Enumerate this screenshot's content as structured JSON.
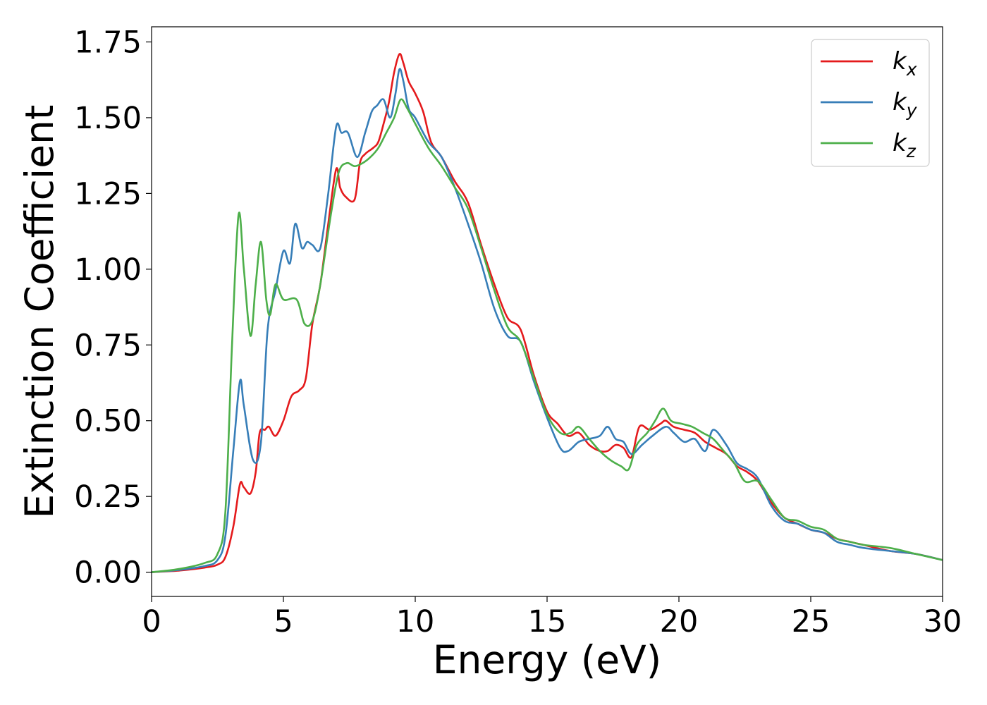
{
  "chart_data": {
    "type": "line",
    "title": "",
    "xlabel": "Energy (eV)",
    "ylabel": "Extinction Coefficient",
    "xlim": [
      0,
      30
    ],
    "ylim": [
      -0.08,
      1.8
    ],
    "xticks": [
      0,
      5,
      10,
      15,
      20,
      25,
      30
    ],
    "xtick_labels": [
      "0",
      "5",
      "10",
      "15",
      "20",
      "25",
      "30"
    ],
    "yticks": [
      0.0,
      0.25,
      0.5,
      0.75,
      1.0,
      1.25,
      1.5,
      1.75
    ],
    "ytick_labels": [
      "0.00",
      "0.25",
      "0.50",
      "0.75",
      "1.00",
      "1.25",
      "1.50",
      "1.75"
    ],
    "grid": false,
    "legend_position": "top-right",
    "series": [
      {
        "name": "k",
        "subscript": "x",
        "color": "#e41a1c",
        "x": [
          0,
          1,
          2,
          2.5,
          2.8,
          3.1,
          3.35,
          3.5,
          3.75,
          3.95,
          4.1,
          4.3,
          4.45,
          4.7,
          5.0,
          5.3,
          5.6,
          5.85,
          6.1,
          6.4,
          6.7,
          7.0,
          7.15,
          7.35,
          7.7,
          7.9,
          8.1,
          8.4,
          8.6,
          8.8,
          9.0,
          9.2,
          9.4,
          9.55,
          9.75,
          10.0,
          10.3,
          10.6,
          11.0,
          11.5,
          12.0,
          12.5,
          13.0,
          13.5,
          14.0,
          14.5,
          15.0,
          15.4,
          15.8,
          16.2,
          16.6,
          17.0,
          17.3,
          17.6,
          17.9,
          18.2,
          18.5,
          18.9,
          19.3,
          19.5,
          19.8,
          20.2,
          20.6,
          21.0,
          21.4,
          21.8,
          22.2,
          22.6,
          23.0,
          23.5,
          24.0,
          24.5,
          25.0,
          25.5,
          26.0,
          26.5,
          27.0,
          28.0,
          29.0,
          30.0
        ],
        "y": [
          0.0,
          0.005,
          0.015,
          0.025,
          0.05,
          0.15,
          0.29,
          0.28,
          0.26,
          0.33,
          0.46,
          0.47,
          0.48,
          0.45,
          0.5,
          0.58,
          0.6,
          0.64,
          0.82,
          0.95,
          1.15,
          1.33,
          1.27,
          1.24,
          1.23,
          1.35,
          1.38,
          1.4,
          1.42,
          1.48,
          1.55,
          1.65,
          1.71,
          1.68,
          1.62,
          1.58,
          1.52,
          1.42,
          1.37,
          1.29,
          1.22,
          1.08,
          0.95,
          0.84,
          0.8,
          0.65,
          0.53,
          0.49,
          0.45,
          0.46,
          0.42,
          0.4,
          0.4,
          0.42,
          0.41,
          0.38,
          0.48,
          0.47,
          0.49,
          0.5,
          0.48,
          0.47,
          0.46,
          0.43,
          0.41,
          0.39,
          0.35,
          0.33,
          0.3,
          0.23,
          0.18,
          0.16,
          0.14,
          0.13,
          0.11,
          0.1,
          0.09,
          0.07,
          0.06,
          0.04
        ]
      },
      {
        "name": "k",
        "subscript": "y",
        "color": "#377eb8",
        "x": [
          0,
          1,
          2,
          2.5,
          2.8,
          3.1,
          3.35,
          3.5,
          3.85,
          4.15,
          4.4,
          4.7,
          5.0,
          5.25,
          5.45,
          5.7,
          5.9,
          6.1,
          6.4,
          6.7,
          7.0,
          7.2,
          7.45,
          7.8,
          8.1,
          8.35,
          8.55,
          8.8,
          9.05,
          9.25,
          9.4,
          9.55,
          9.75,
          10.0,
          10.5,
          11.0,
          11.5,
          12.0,
          12.5,
          13.0,
          13.5,
          14.0,
          14.5,
          15.0,
          15.5,
          15.8,
          16.2,
          16.6,
          17.0,
          17.3,
          17.6,
          17.9,
          18.2,
          18.6,
          19.0,
          19.5,
          19.8,
          20.2,
          20.6,
          21.0,
          21.3,
          21.8,
          22.2,
          22.6,
          23.0,
          23.5,
          24.0,
          24.5,
          25.0,
          25.5,
          26.0,
          26.5,
          27.0,
          28.0,
          29.0,
          30.0
        ],
        "y": [
          0.0,
          0.007,
          0.02,
          0.04,
          0.12,
          0.4,
          0.63,
          0.55,
          0.37,
          0.43,
          0.8,
          0.93,
          1.06,
          1.02,
          1.15,
          1.07,
          1.09,
          1.08,
          1.07,
          1.25,
          1.47,
          1.45,
          1.45,
          1.37,
          1.45,
          1.52,
          1.54,
          1.56,
          1.5,
          1.58,
          1.66,
          1.62,
          1.53,
          1.5,
          1.42,
          1.37,
          1.27,
          1.15,
          1.02,
          0.87,
          0.78,
          0.76,
          0.63,
          0.51,
          0.41,
          0.4,
          0.43,
          0.44,
          0.45,
          0.48,
          0.44,
          0.43,
          0.39,
          0.42,
          0.45,
          0.48,
          0.46,
          0.43,
          0.44,
          0.4,
          0.47,
          0.42,
          0.36,
          0.34,
          0.31,
          0.22,
          0.17,
          0.16,
          0.14,
          0.13,
          0.1,
          0.09,
          0.08,
          0.07,
          0.06,
          0.04
        ]
      },
      {
        "name": "k",
        "subscript": "z",
        "color": "#4daf4a",
        "x": [
          0,
          1,
          2,
          2.5,
          2.8,
          3.05,
          3.3,
          3.5,
          3.75,
          3.95,
          4.15,
          4.35,
          4.5,
          4.7,
          5.0,
          5.5,
          5.8,
          6.1,
          6.4,
          6.8,
          7.1,
          7.4,
          7.7,
          8.0,
          8.3,
          8.6,
          8.9,
          9.2,
          9.45,
          9.7,
          10.0,
          10.5,
          11.0,
          11.5,
          12.0,
          12.5,
          13.0,
          13.5,
          14.0,
          14.5,
          15.0,
          15.5,
          15.9,
          16.2,
          16.6,
          17.0,
          17.4,
          17.8,
          18.1,
          18.4,
          18.8,
          19.1,
          19.4,
          19.7,
          20.1,
          20.5,
          20.9,
          21.3,
          21.7,
          22.1,
          22.5,
          23.0,
          23.5,
          24.0,
          24.5,
          25.0,
          25.5,
          26.0,
          26.5,
          27.0,
          28.0,
          29.0,
          30.0
        ],
        "y": [
          0.0,
          0.01,
          0.03,
          0.06,
          0.2,
          0.75,
          1.18,
          1.0,
          0.78,
          0.95,
          1.09,
          0.9,
          0.85,
          0.95,
          0.9,
          0.9,
          0.82,
          0.83,
          0.95,
          1.18,
          1.32,
          1.35,
          1.34,
          1.35,
          1.37,
          1.4,
          1.45,
          1.5,
          1.56,
          1.53,
          1.48,
          1.4,
          1.34,
          1.27,
          1.2,
          1.07,
          0.93,
          0.81,
          0.76,
          0.64,
          0.52,
          0.46,
          0.46,
          0.48,
          0.44,
          0.4,
          0.37,
          0.35,
          0.34,
          0.42,
          0.46,
          0.5,
          0.54,
          0.5,
          0.49,
          0.48,
          0.46,
          0.44,
          0.4,
          0.36,
          0.3,
          0.3,
          0.24,
          0.18,
          0.17,
          0.15,
          0.14,
          0.11,
          0.1,
          0.09,
          0.08,
          0.06,
          0.04
        ]
      }
    ]
  }
}
